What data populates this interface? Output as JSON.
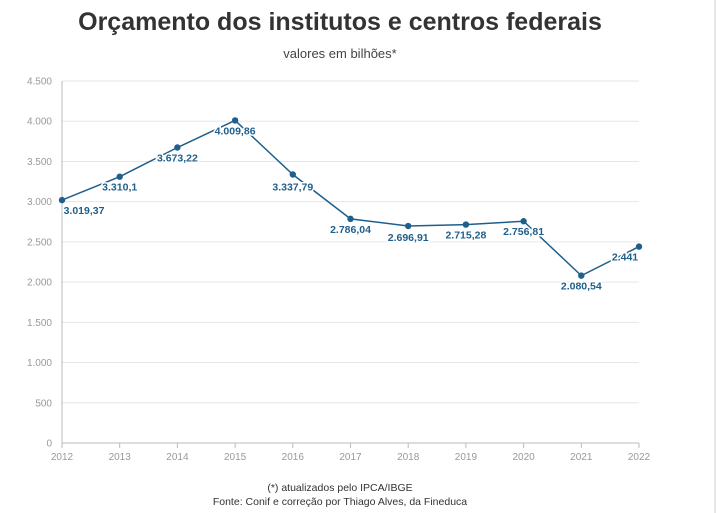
{
  "title": "Orçamento dos institutos e centros federais",
  "subtitle": "valores em bilhões*",
  "note": "(*) atualizados pelo IPCA/IBGE",
  "source": "Fonte: Conif e correção por Thiago Alves, da Fineduca",
  "colors": {
    "line": "#1f5f8b",
    "label": "#1f5f8b",
    "grid": "#e6e6e6",
    "axis": "#bbbbbb",
    "tick_text": "#999999"
  },
  "chart_data": {
    "type": "line",
    "x": [
      2012,
      2013,
      2014,
      2015,
      2016,
      2017,
      2018,
      2019,
      2020,
      2021,
      2022
    ],
    "x_tick_labels": [
      "2012",
      "2013",
      "2014",
      "2015",
      "2016",
      "2017",
      "2018",
      "2019",
      "2020",
      "2021",
      "2022"
    ],
    "values": [
      3019.37,
      3310.1,
      3673.22,
      4009.86,
      3337.79,
      2786.04,
      2696.91,
      2715.28,
      2756.81,
      2080.54,
      2441
    ],
    "data_labels": [
      "3.019,37",
      "3.310,1",
      "3.673,22",
      "4.009,86",
      "3.337,79",
      "2.786,04",
      "2.696,91",
      "2.715,28",
      "2.756,81",
      "2.080,54",
      "2.441"
    ],
    "y_ticks": [
      0,
      500,
      1000,
      1500,
      2000,
      2500,
      3000,
      3500,
      4000,
      4500
    ],
    "y_tick_labels": [
      "0",
      "500",
      "1.000",
      "1.500",
      "2.000",
      "2.500",
      "3.000",
      "3.500",
      "4.000",
      "4.500"
    ],
    "ylim": [
      0,
      4500
    ],
    "grid": true,
    "legend": "none"
  }
}
